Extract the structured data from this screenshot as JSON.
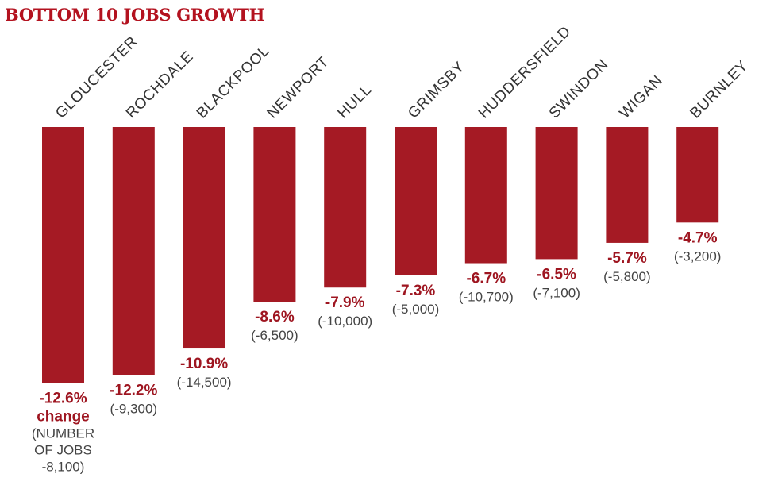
{
  "chart_data": {
    "type": "bar",
    "title": "BOTTOM 10 JOBS GROWTH",
    "categories": [
      "GLOUCESTER",
      "ROCHDALE",
      "BLACKPOOL",
      "NEWPORT",
      "HULL",
      "GRIMSBY",
      "HUDDERSFIELD",
      "SWINDON",
      "WIGAN",
      "BURNLEY"
    ],
    "values": [
      -12.6,
      -12.2,
      -10.9,
      -8.6,
      -7.9,
      -7.3,
      -6.7,
      -6.5,
      -5.7,
      -4.7
    ],
    "value_labels": [
      "-12.6%",
      "-12.2%",
      "-10.9%",
      "-8.6%",
      "-7.9%",
      "-7.3%",
      "-6.7%",
      "-6.5%",
      "-5.7%",
      "-4.7%"
    ],
    "jobs": [
      "-8,100",
      "-9,300",
      "-14,500",
      "-6,500",
      "-10,000",
      "-5,000",
      "-10,700",
      "-7,100",
      "-5,800",
      "-3,200"
    ],
    "job_labels": [
      "",
      "(-9,300)",
      "(-14,500)",
      "(-6,500)",
      "(-10,000)",
      "(-5,000)",
      "(-10,700)",
      "(-7,100)",
      "(-5,800)",
      "(-3,200)"
    ],
    "first_bar_note": [
      "change",
      "(NUMBER",
      "OF JOBS",
      "-8,100)"
    ],
    "bar_color": "#a51a24",
    "ylim": [
      -13,
      0
    ],
    "grid": false,
    "legend": "none"
  }
}
